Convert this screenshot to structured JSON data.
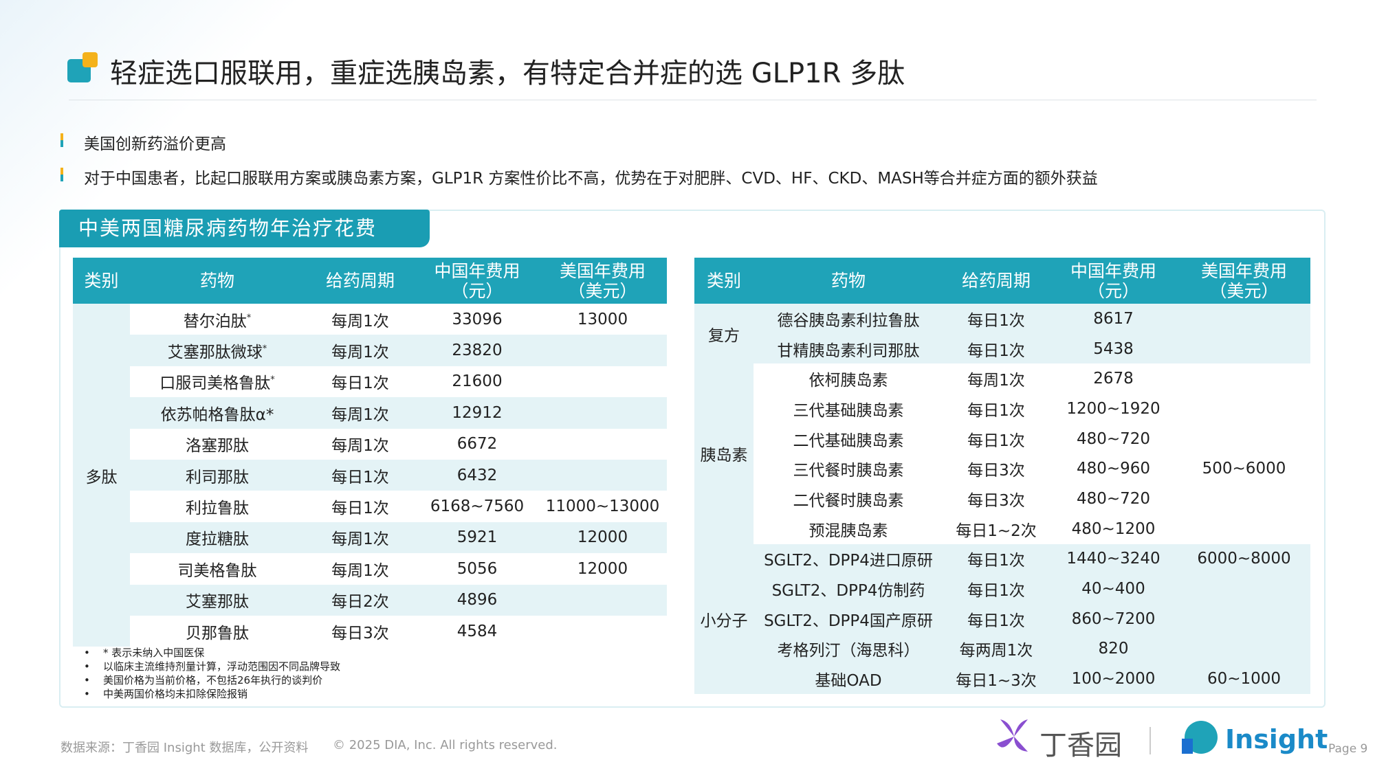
{
  "header": {
    "title": "轻症选口服联用，重症选胰岛素，有特定合并症的选 GLP1R 多肽"
  },
  "bullets": [
    "美国创新药溢价更高",
    "对于中国患者，比起口服联用方案或胰岛素方案，GLP1R 方案性价比不高，优势在于对肥胖、CVD、HF、CKD、MASH等合并症方面的额外获益"
  ],
  "panel": {
    "title": "中美两国糖尿病药物年治疗花费"
  },
  "tables": [
    {
      "columns": [
        {
          "name": "类别"
        },
        {
          "name": "药物"
        },
        {
          "name": "给药周期"
        },
        {
          "name": "中国年费用",
          "unit": "（元）"
        },
        {
          "name": "美国年费用",
          "unit": "（美元）"
        }
      ],
      "groups": [
        {
          "name": "多肽",
          "rows": [
            {
              "drug": "替尔泊肽",
              "mark": "*",
              "period": "每周1次",
              "cn": 33096,
              "us": 13000
            },
            {
              "drug": "艾塞那肽微球",
              "mark": "*",
              "period": "每周1次",
              "cn": 23820
            },
            {
              "drug": "口服司美格鲁肽",
              "mark": "*",
              "period": "每日1次",
              "cn": 21600
            },
            {
              "drug": "依苏帕格鲁肽α*",
              "period": "每周1次",
              "cn": 12912
            },
            {
              "drug": "洛塞那肽",
              "period": "每周1次",
              "cn": 6672
            },
            {
              "drug": "利司那肽",
              "period": "每日1次",
              "cn": 6432
            },
            {
              "drug": "利拉鲁肽",
              "period": "每日1次",
              "cn": "6168~7560",
              "us": "11000~13000"
            },
            {
              "drug": "度拉糖肽",
              "period": "每周1次",
              "cn": 5921,
              "us": 12000
            },
            {
              "drug": "司美格鲁肽",
              "period": "每周1次",
              "cn": 5056,
              "us": 12000
            },
            {
              "drug": "艾塞那肽",
              "period": "每日2次",
              "cn": 4896
            },
            {
              "drug": "贝那鲁肽",
              "period": "每日3次",
              "cn": 4584
            }
          ]
        }
      ]
    },
    {
      "columns": [
        {
          "name": "类别"
        },
        {
          "name": "药物"
        },
        {
          "name": "给药周期"
        },
        {
          "name": "中国年费用",
          "unit": "（元）"
        },
        {
          "name": "美国年费用",
          "unit": "（美元）"
        }
      ],
      "groups": [
        {
          "name": "复方",
          "rows": [
            {
              "drug": "德谷胰岛素利拉鲁肽",
              "period": "每日1次",
              "cn": 8617
            },
            {
              "drug": "甘精胰岛素利司那肽",
              "period": "每日1次",
              "cn": 5438
            }
          ]
        },
        {
          "name": "胰岛素",
          "rows": [
            {
              "drug": "依柯胰岛素",
              "period": "每周1次",
              "cn": 2678
            },
            {
              "drug": "三代基础胰岛素",
              "period": "每日1次",
              "cn": "1200~1920"
            },
            {
              "drug": "二代基础胰岛素",
              "period": "每日1次",
              "cn": "480~720"
            },
            {
              "drug": "三代餐时胰岛素",
              "period": "每日3次",
              "cn": "480~960",
              "us": "500~6000"
            },
            {
              "drug": "二代餐时胰岛素",
              "period": "每日3次",
              "cn": "480~720"
            },
            {
              "drug": "预混胰岛素",
              "period": "每日1~2次",
              "cn": "480~1200"
            }
          ]
        },
        {
          "name": "小分子",
          "rows": [
            {
              "drug": "SGLT2、DPP4进口原研",
              "period": "每日1次",
              "cn": "1440~3240",
              "us": "6000~8000"
            },
            {
              "drug": "SGLT2、DPP4仿制药",
              "period": "每日1次",
              "cn": "40~400"
            },
            {
              "drug": "SGLT2、DPP4国产原研",
              "period": "每日1次",
              "cn": "860~7200"
            },
            {
              "drug": "考格列汀（海思科）",
              "period": "每两周1次",
              "cn": 820
            },
            {
              "drug": "基础OAD",
              "period": "每日1~3次",
              "cn": "100~2000",
              "us": "60~1000"
            }
          ]
        }
      ]
    }
  ],
  "notes": [
    "* 表示未纳入中国医保",
    "以临床主流维持剂量计算，浮动范围因不同品牌导致",
    "美国价格为当前价格，不包括26年执行的谈判价",
    "中美两国价格均未扣除保险报销"
  ],
  "footer": {
    "source": "数据来源：丁香园 Insight 数据库，公开资料",
    "copyright": "© 2025 DIA, Inc. All rights reserved.",
    "logo1": "丁香园",
    "logo2": "Insight",
    "page": "Page 9"
  }
}
